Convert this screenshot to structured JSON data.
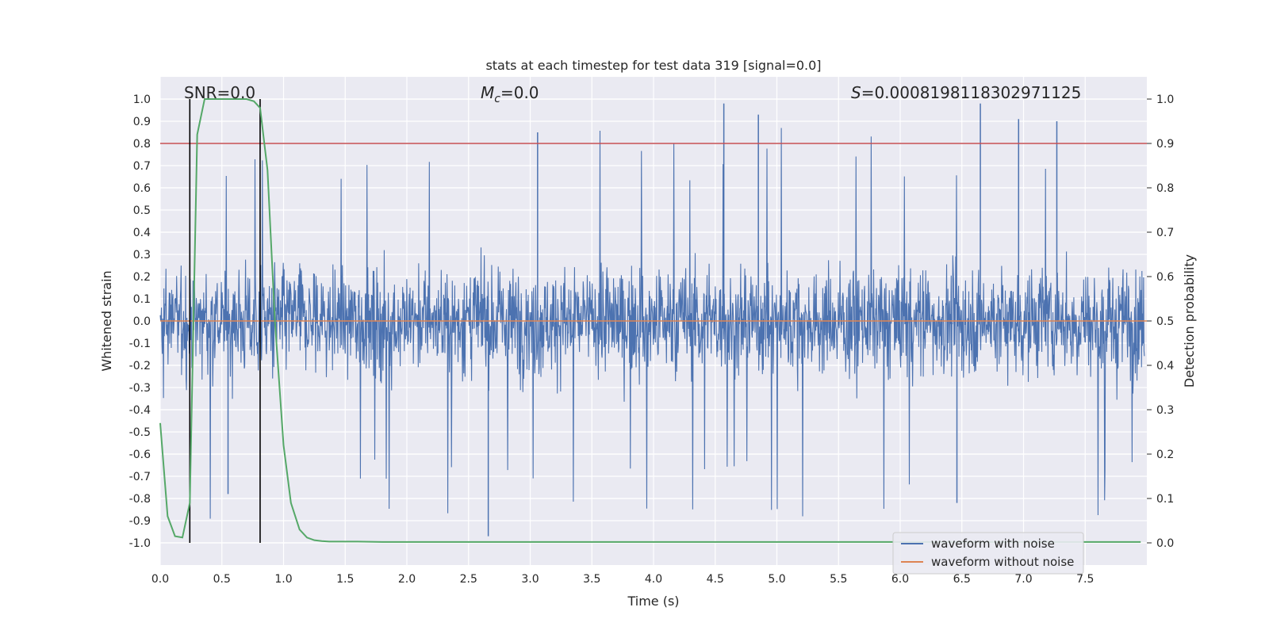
{
  "chart_data": {
    "type": "line",
    "title": "stats at each timestep for test data 319 [signal=0.0]",
    "xlabel": "Time (s)",
    "ylabel": "Whitened strain",
    "y2label": "Detection probability",
    "xlim": [
      0.0,
      8.0
    ],
    "ylim": [
      -1.1,
      1.1
    ],
    "y2lim": [
      -0.05,
      1.05
    ],
    "x_ticks": [
      "0.0",
      "0.5",
      "1.0",
      "1.5",
      "2.0",
      "2.5",
      "3.0",
      "3.5",
      "4.0",
      "4.5",
      "5.0",
      "5.5",
      "6.0",
      "6.5",
      "7.0",
      "7.5"
    ],
    "y_ticks": [
      "1.0",
      "0.9",
      "0.8",
      "0.7",
      "0.6",
      "0.5",
      "0.4",
      "0.3",
      "0.2",
      "0.1",
      "0.0",
      "-0.1",
      "-0.2",
      "-0.3",
      "-0.4",
      "-0.5",
      "-0.6",
      "-0.7",
      "-0.8",
      "-0.9",
      "-1.0"
    ],
    "y2_ticks": [
      "1.0",
      "0.9",
      "0.8",
      "0.7",
      "0.6",
      "0.5",
      "0.4",
      "0.3",
      "0.2",
      "0.1",
      "0.0"
    ],
    "grid": true,
    "legend_position": "lower-right",
    "annotations": {
      "snr": "SNR=0.0",
      "mc": "M",
      "mc_sub": "c",
      "mc_val": "=0.0",
      "s_sym": "S",
      "s_val": "=0.0008198118302971125"
    },
    "threshold_y2": 0.9,
    "window_lines_x": [
      0.24,
      0.81
    ],
    "series": [
      {
        "name": "waveform with noise",
        "color": "#4c72b0",
        "axis": "left",
        "envelope": "random noise, amplitude mostly within ±0.45, peaks up to 0.98 and down to -0.97"
      },
      {
        "name": "waveform without noise",
        "color": "#dd8452",
        "axis": "left",
        "constant": 0.0
      }
    ],
    "detection_probability": {
      "color": "#55a868",
      "axis": "right",
      "x": [
        0.0,
        0.06,
        0.12,
        0.18,
        0.24,
        0.3,
        0.36,
        0.42,
        0.48,
        0.55,
        0.62,
        0.7,
        0.76,
        0.81,
        0.87,
        0.93,
        1.0,
        1.06,
        1.13,
        1.19,
        1.25,
        1.31,
        1.37,
        1.45,
        1.6,
        1.8,
        2.0,
        3.0,
        4.0,
        5.0,
        6.0,
        7.0,
        7.95
      ],
      "y": [
        0.27,
        0.06,
        0.015,
        0.012,
        0.09,
        0.92,
        1.0,
        1.0,
        1.0,
        1.0,
        1.0,
        1.0,
        0.995,
        0.98,
        0.84,
        0.5,
        0.22,
        0.09,
        0.03,
        0.012,
        0.006,
        0.004,
        0.003,
        0.003,
        0.003,
        0.002,
        0.002,
        0.002,
        0.002,
        0.002,
        0.002,
        0.002,
        0.002
      ]
    },
    "colors": {
      "background": "#eaeaf2",
      "grid": "#ffffff",
      "threshold": "#c44e52",
      "window": "#000000"
    }
  }
}
